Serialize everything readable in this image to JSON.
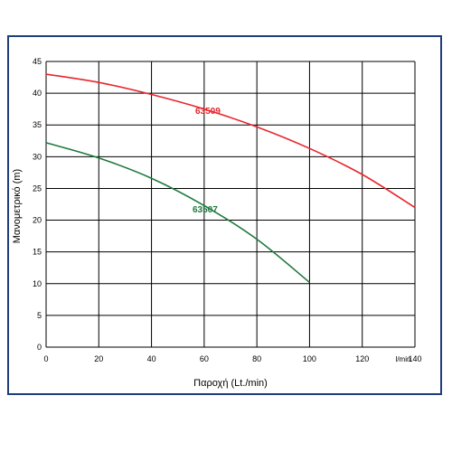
{
  "chart_data": {
    "type": "line",
    "xlabel": "Παροχή (Lt./min)",
    "ylabel": "Μανομετρικό  (m)",
    "x_unit_label": "l/min",
    "xlim": [
      0,
      140
    ],
    "ylim": [
      0,
      45
    ],
    "x_ticks": [
      0,
      20,
      40,
      60,
      80,
      100,
      120,
      140
    ],
    "y_ticks": [
      0,
      5,
      10,
      15,
      20,
      25,
      30,
      35,
      40,
      45
    ],
    "grid": true,
    "series": [
      {
        "name": "63509",
        "color": "#e8262d",
        "x": [
          0,
          20,
          40,
          60,
          80,
          100,
          120,
          140
        ],
        "y": [
          43,
          41.7,
          39.8,
          37.5,
          34.7,
          31.3,
          27.2,
          22
        ]
      },
      {
        "name": "63507",
        "color": "#1f7a3c",
        "x": [
          0,
          20,
          40,
          60,
          80,
          100
        ],
        "y": [
          32.2,
          29.8,
          26.6,
          22.3,
          17,
          10.2
        ]
      }
    ]
  }
}
